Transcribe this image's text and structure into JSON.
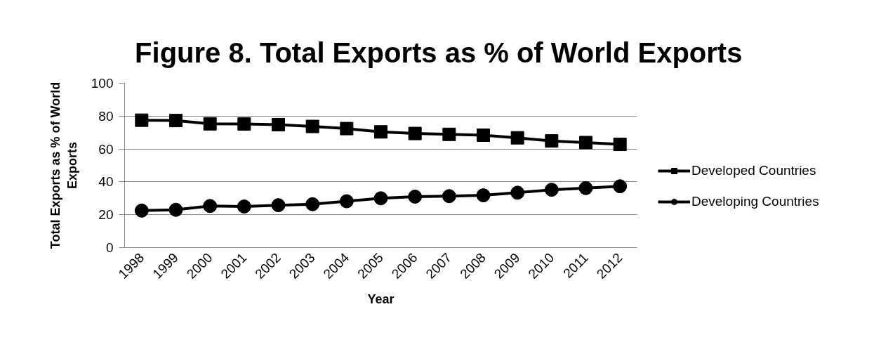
{
  "chart_data": {
    "type": "line",
    "title": "Figure 8. Total Exports as % of World Exports",
    "xlabel": "Year",
    "ylabel": "Total Exports as % of World Exports",
    "categories": [
      "1998",
      "1999",
      "2000",
      "2001",
      "2002",
      "2003",
      "2004",
      "2005",
      "2006",
      "2007",
      "2008",
      "2009",
      "2010",
      "2011",
      "2012"
    ],
    "series": [
      {
        "name": "Developed Countries",
        "color": "#000000",
        "marker": "square",
        "values": [
          77.5,
          77.3,
          75.3,
          75.2,
          74.8,
          73.7,
          72.4,
          70.4,
          69.4,
          68.9,
          68.4,
          66.8,
          64.9,
          63.9,
          62.8
        ]
      },
      {
        "name": "Developing Countries",
        "color": "#000000",
        "marker": "circle",
        "values": [
          22.5,
          23.0,
          25.3,
          25.0,
          25.8,
          26.4,
          28.2,
          30.0,
          31.0,
          31.3,
          31.8,
          33.4,
          35.2,
          36.2,
          37.3
        ]
      }
    ],
    "ylim": [
      0,
      100
    ],
    "yticks": [
      0,
      20,
      40,
      60,
      80,
      100
    ],
    "grid": "y",
    "legend": "right"
  }
}
